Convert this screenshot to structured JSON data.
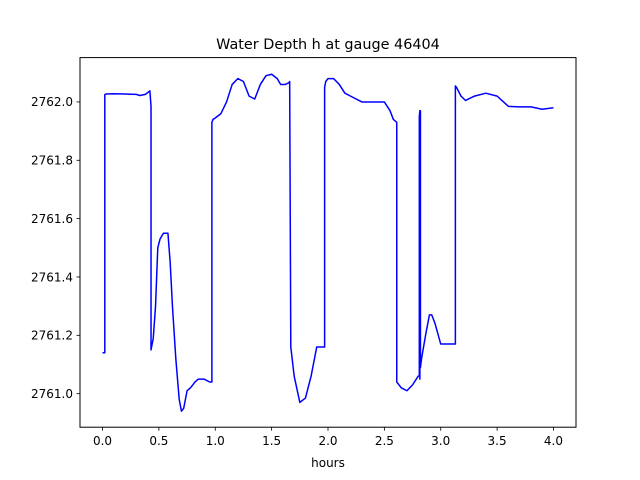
{
  "chart_data": {
    "type": "line",
    "title": "Water Depth h at gauge 46404",
    "xlabel": "hours",
    "ylabel": "",
    "xlim": [
      -0.2,
      4.2
    ],
    "ylim": [
      2760.885,
      2762.152
    ],
    "xticks": [
      0.0,
      0.5,
      1.0,
      1.5,
      2.0,
      2.5,
      3.0,
      3.5,
      4.0
    ],
    "xtick_labels": [
      "0.0",
      "0.5",
      "1.0",
      "1.5",
      "2.0",
      "2.5",
      "3.0",
      "3.5",
      "4.0"
    ],
    "yticks": [
      2761.0,
      2761.2,
      2761.4,
      2761.6,
      2761.8,
      2762.0
    ],
    "ytick_labels": [
      "2761.0",
      "2761.2",
      "2761.4",
      "2761.6",
      "2761.8",
      "2762.0"
    ],
    "grid": false,
    "line_color": "#0000ff",
    "series": [
      {
        "x": [
          0.0,
          0.02,
          0.02,
          0.03,
          0.1,
          0.2,
          0.3,
          0.33,
          0.38,
          0.42,
          0.43,
          0.43,
          0.45,
          0.47,
          0.49,
          0.51,
          0.54,
          0.58,
          0.6,
          0.62,
          0.65,
          0.68,
          0.7,
          0.72,
          0.75,
          0.78,
          0.8,
          0.82,
          0.85,
          0.9,
          0.95,
          0.97,
          0.97,
          0.98,
          1.0,
          1.05,
          1.1,
          1.15,
          1.2,
          1.25,
          1.3,
          1.35,
          1.4,
          1.45,
          1.5,
          1.55,
          1.58,
          1.62,
          1.65,
          1.66,
          1.67,
          1.67,
          1.7,
          1.75,
          1.8,
          1.85,
          1.9,
          1.95,
          1.97,
          1.97,
          1.98,
          2.0,
          2.05,
          2.1,
          2.15,
          2.2,
          2.3,
          2.4,
          2.5,
          2.55,
          2.58,
          2.61,
          2.61,
          2.65,
          2.7,
          2.75,
          2.8,
          2.81,
          2.81,
          2.815,
          2.815,
          2.82,
          2.82,
          2.83,
          2.87,
          2.9,
          2.92,
          2.95,
          3.0,
          3.05,
          3.1,
          3.13,
          3.13,
          3.14,
          3.18,
          3.22,
          3.3,
          3.4,
          3.5,
          3.6,
          3.7,
          3.8,
          3.9,
          4.0
        ],
        "y": [
          2761.14,
          2761.14,
          2762.025,
          2762.027,
          2762.028,
          2762.027,
          2762.026,
          2762.022,
          2762.026,
          2762.038,
          2761.985,
          2761.15,
          2761.19,
          2761.3,
          2761.5,
          2761.53,
          2761.55,
          2761.55,
          2761.45,
          2761.3,
          2761.12,
          2760.98,
          2760.94,
          2760.95,
          2761.01,
          2761.02,
          2761.03,
          2761.04,
          2761.05,
          2761.05,
          2761.04,
          2761.04,
          2761.93,
          2761.94,
          2761.945,
          2761.96,
          2762.0,
          2762.06,
          2762.08,
          2762.07,
          2762.02,
          2762.01,
          2762.06,
          2762.09,
          2762.095,
          2762.08,
          2762.06,
          2762.06,
          2762.065,
          2762.07,
          2761.16,
          2761.16,
          2761.06,
          2760.97,
          2760.985,
          2761.06,
          2761.16,
          2761.16,
          2761.16,
          2762.05,
          2762.07,
          2762.08,
          2762.08,
          2762.06,
          2762.03,
          2762.02,
          2762.0,
          2762.0,
          2762.0,
          2761.97,
          2761.94,
          2761.93,
          2761.04,
          2761.02,
          2761.01,
          2761.03,
          2761.06,
          2761.06,
          2761.95,
          2761.97,
          2761.05,
          2761.97,
          2761.09,
          2761.12,
          2761.21,
          2761.27,
          2761.27,
          2761.24,
          2761.17,
          2761.17,
          2761.17,
          2761.17,
          2762.055,
          2762.05,
          2762.02,
          2762.005,
          2762.02,
          2762.03,
          2762.02,
          2761.985,
          2761.983,
          2761.983,
          2761.975,
          2761.98
        ]
      }
    ]
  }
}
